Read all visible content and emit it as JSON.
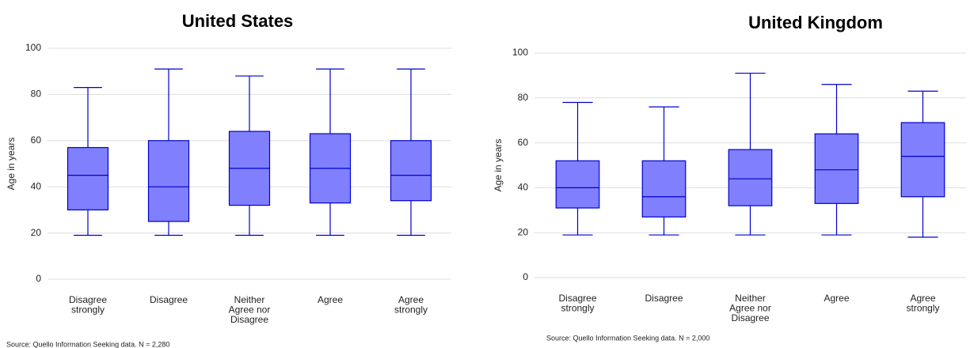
{
  "chart_data": [
    {
      "type": "box",
      "title": "United States",
      "ylabel": "Age in years",
      "categories": [
        "Disagree strongly",
        "Disagree",
        "Neither Agree nor Disagree",
        "Agree",
        "Agree strongly"
      ],
      "min": [
        19,
        19,
        19,
        19,
        19
      ],
      "q1": [
        30,
        25,
        32,
        33,
        34
      ],
      "median": [
        45,
        40,
        48,
        48,
        45
      ],
      "q3": [
        57,
        60,
        64,
        63,
        60
      ],
      "max": [
        83,
        91,
        88,
        91,
        91
      ],
      "color": "#8080ff",
      "edge_color": "#0000cc",
      "ylim": [
        0,
        100
      ],
      "yticks": [
        0,
        20,
        40,
        60,
        80,
        100
      ],
      "grid": true,
      "note": "Source: Quello Information Seeking data. N = 2,280"
    },
    {
      "type": "box",
      "title": "United Kingdom",
      "ylabel": "Age in years",
      "categories": [
        "Disagree strongly",
        "Disagree",
        "Neither Agree nor Disagree",
        "Agree",
        "Agree strongly"
      ],
      "min": [
        19,
        19,
        19,
        19,
        18
      ],
      "q1": [
        31,
        27,
        32,
        33,
        36
      ],
      "median": [
        40,
        36,
        44,
        48,
        54
      ],
      "q3": [
        52,
        52,
        57,
        64,
        69
      ],
      "max": [
        78,
        76,
        91,
        86,
        83
      ],
      "color": "#8080ff",
      "edge_color": "#0000cc",
      "ylim": [
        0,
        100
      ],
      "yticks": [
        0,
        20,
        40,
        60,
        80,
        100
      ],
      "grid": true,
      "note": "Source: Quello Information Seeking data. N = 2,000"
    }
  ]
}
